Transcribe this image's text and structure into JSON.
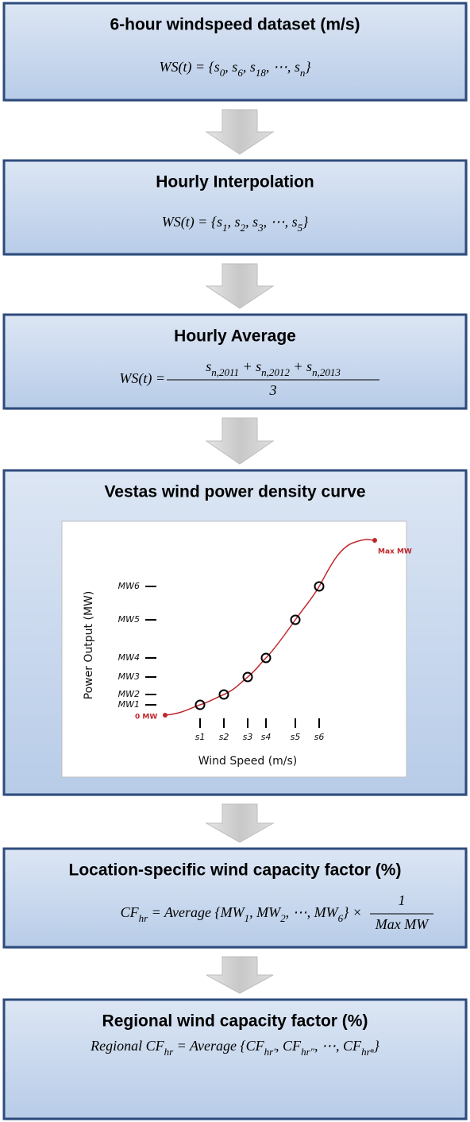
{
  "boxes": [
    {
      "title": "6-hour windspeed dataset (m/s)",
      "formula": [
        "WS(t) = {s",
        "0",
        ", s",
        "6",
        ", s",
        "18",
        ", ⋯, s",
        "n",
        "}"
      ]
    },
    {
      "title": "Hourly Interpolation",
      "formula": [
        "WS(t) = {s",
        "1",
        ", s",
        "2",
        ", s",
        "3",
        ", ⋯, s",
        "5",
        "}"
      ]
    },
    {
      "title": "Hourly Average",
      "formula": {
        "lhs": [
          "WS(t) = "
        ],
        "numerator": [
          "s",
          "n,2011",
          " + s",
          "n,2012",
          " + s",
          "n,2013"
        ],
        "denominator": [
          "3"
        ]
      }
    },
    {
      "title": "Vestas wind power density curve",
      "curve": {
        "y_axis_label": "Power Output (MW)",
        "x_axis_label": "Wind Speed (m/s)",
        "max_label": "Max MW",
        "zero_label": "0 MW",
        "power_levels": [
          "MW6",
          "MW5",
          "MW4",
          "MW3",
          "MW2",
          "MW1"
        ],
        "speeds": [
          "s1",
          "s2",
          "s3",
          "s4",
          "s5",
          "s6"
        ]
      }
    },
    {
      "title": "Location-specific wind capacity factor (%)",
      "formula": {
        "lhs": [
          "CF",
          "hr",
          " = Average {MW",
          "1",
          ", MW",
          "2",
          ", ⋯, MW",
          "6",
          "} × "
        ],
        "numerator": [
          "1"
        ],
        "denominator": [
          "Max MW"
        ]
      }
    },
    {
      "title": "Regional wind capacity factor (%)",
      "formula": [
        "Regional CF",
        "hr",
        " = Average {CF",
        "hr′",
        ", CF",
        "hr″",
        ", ⋯, CF",
        "hrⁿ",
        "}"
      ]
    }
  ]
}
